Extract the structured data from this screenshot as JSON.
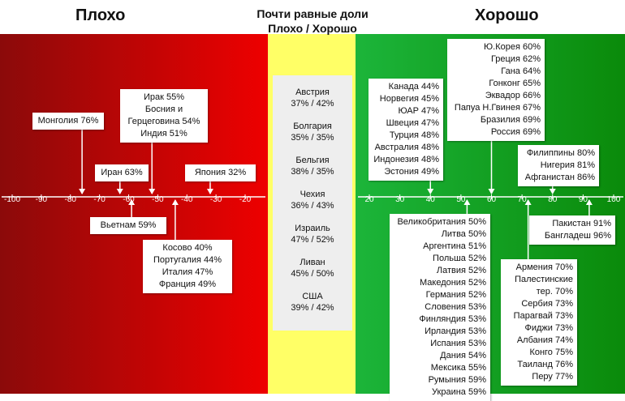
{
  "headers": {
    "bad": "Плохо",
    "good": "Хорошо",
    "middle_line1": "Почти равные доли",
    "middle_line2": "Плохо / Хорошо"
  },
  "colors": {
    "bad_dark": "#8b0a0a",
    "bad_bright": "#ee0000",
    "middle": "#ffff66",
    "good_light": "#1cb53a",
    "good_dark": "#0a8a0a",
    "axis": "#ffffff"
  },
  "chart_data": {
    "type": "scatter",
    "axis_ticks_left": [
      -100,
      -90,
      -80,
      -70,
      -60,
      -50,
      -40,
      -30,
      -20
    ],
    "axis_ticks_right": [
      20,
      30,
      40,
      50,
      60,
      70,
      80,
      90,
      100
    ],
    "boxes": {
      "mongolia": {
        "lines": [
          "Монголия 76%"
        ],
        "pointer": -76
      },
      "iraq": {
        "lines": [
          "Ирак 55%",
          "Босния и",
          "Герцеговина 54%",
          "Индия 51%"
        ],
        "pointer": -52
      },
      "iran": {
        "lines": [
          "Иран 63%"
        ],
        "pointer": -63
      },
      "japan": {
        "lines": [
          "Япония 32%"
        ],
        "pointer": -32
      },
      "vietnam": {
        "lines": [
          "Вьетнам 59%"
        ],
        "pointer": -59
      },
      "kosovo": {
        "lines": [
          "Косово 40%",
          "Португалия 44%",
          "Италия 47%",
          "Франция 49%"
        ],
        "pointer": -44
      },
      "canada": {
        "lines": [
          "Канада 44%",
          "Норвегия 45%",
          "ЮАР 47%",
          "Швеция 47%",
          "Турция 48%",
          "Австралия 48%",
          "Индонезия 48%",
          "Эстония 49%"
        ],
        "pointer": 40
      },
      "korea": {
        "lines": [
          "Ю.Корея 60%",
          "Греция 62%",
          "Гана 64%",
          "Гонконг 65%",
          "Эквадор 66%",
          "Папуа Н.Гвинея 67%",
          "Бразилия 69%",
          "Россия 69%"
        ],
        "pointer": 60
      },
      "philippines": {
        "lines": [
          "Филиппины 80%",
          "Нигерия 81%",
          "Афганистан 86%"
        ],
        "pointer": 80
      },
      "uk": {
        "lines": [
          "Великобритания 50%",
          "Литва 50%",
          "Аргентина 51%",
          "Польша 52%",
          "Латвия 52%",
          "Македония 52%",
          "Германия 52%",
          "Словения 53%",
          "Финляндия 53%",
          "Ирландия 53%",
          "Испания 53%",
          "Дания 54%",
          "Мексика 55%",
          "Румыния 59%",
          "Украина 59%"
        ],
        "pointer": 52
      },
      "pakistan": {
        "lines": [
          "Пакистан 91%",
          "Бангладеш 96%"
        ],
        "pointer": 92
      },
      "armenia": {
        "lines": [
          "Армения 70%",
          "Палестинские",
          "тер. 70%",
          "Сербия 73%",
          "Парагвай 73%",
          "Фиджи 73%",
          "Албания 74%",
          "Конго 75%",
          "Таиланд 76%",
          "Перу 77%"
        ],
        "pointer": 72
      }
    },
    "middle_items": [
      {
        "name": "Австрия",
        "values": "37% / 42%"
      },
      {
        "name": "Болгария",
        "values": "35% / 35%"
      },
      {
        "name": "Бельгия",
        "values": "38% / 35%"
      },
      {
        "name": "Чехия",
        "values": "36% / 43%"
      },
      {
        "name": "Израиль",
        "values": "47% / 52%"
      },
      {
        "name": "Ливан",
        "values": "45% / 50%"
      },
      {
        "name": "США",
        "values": "39% / 42%"
      }
    ]
  }
}
